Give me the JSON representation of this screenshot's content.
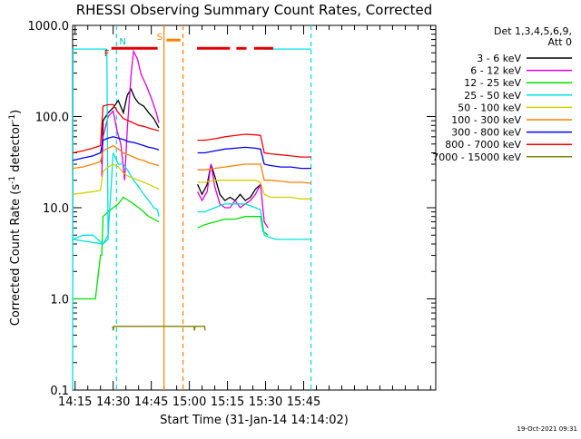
{
  "chart_data": {
    "type": "line",
    "title": "RHESSI Observing Summary Count Rates, Corrected",
    "xlabel": "Start Time (31-Jan-14 14:14:02)",
    "ylabel": "Corrected Count Rate (s⁻¹ detector⁻¹)",
    "ylabel_main": "Corrected Count Rate (s",
    "ylabel_exp1": "-1",
    "ylabel_mid": " detector",
    "ylabel_exp2": "-1",
    "ylabel_end": ")",
    "y_scale": "log",
    "ylim": [
      0.1,
      1000
    ],
    "xlim_minutes": [
      14.03,
      157.0
    ],
    "x_ticks": [
      {
        "label": "14:15",
        "minutes": 15
      },
      {
        "label": "14:30",
        "minutes": 30
      },
      {
        "label": "14:45",
        "minutes": 45
      },
      {
        "label": "15:00",
        "minutes": 60
      },
      {
        "label": "15:15",
        "minutes": 75
      },
      {
        "label": "15:30",
        "minutes": 90
      },
      {
        "label": "15:45",
        "minutes": 105
      }
    ],
    "y_ticks": [
      {
        "label": "1000.0",
        "value": 1000
      },
      {
        "label": "100.0",
        "value": 100
      },
      {
        "label": "10.0",
        "value": 10
      },
      {
        "label": "1.0",
        "value": 1
      },
      {
        "label": "0.1",
        "value": 0.1
      }
    ],
    "legend_header": [
      "Det 1,3,4,5,6,9,",
      "Att 0"
    ],
    "legend_placement": "right",
    "footer_timestamp": "19-Oct-2021 09:31",
    "flag_markers": [
      {
        "label": "N",
        "minutes": 31.3
      },
      {
        "label": "F",
        "minutes": 29.3
      },
      {
        "label": "S",
        "minutes": 50.0
      }
    ],
    "series": [
      {
        "name": "3 - 6 keV",
        "color": "#000000",
        "points": [
          [
            25.5,
            30
          ],
          [
            26,
            90
          ],
          [
            28,
            110
          ],
          [
            30,
            125
          ],
          [
            32,
            150
          ],
          [
            34,
            110
          ],
          [
            35.5,
            170
          ],
          [
            37,
            200
          ],
          [
            38.5,
            160
          ],
          [
            40,
            140
          ],
          [
            42,
            130
          ],
          [
            44,
            110
          ],
          [
            46,
            95
          ],
          [
            48,
            75
          ],
          [
            48.2,
            0
          ],
          [
            63,
            0
          ],
          [
            63.2,
            18
          ],
          [
            65,
            14
          ],
          [
            67,
            18
          ],
          [
            68.5,
            30
          ],
          [
            70,
            22
          ],
          [
            72,
            14
          ],
          [
            74,
            12
          ],
          [
            76,
            13
          ],
          [
            78,
            12
          ],
          [
            80,
            14
          ],
          [
            82,
            12
          ],
          [
            84,
            13
          ],
          [
            86,
            16
          ],
          [
            88,
            18
          ],
          [
            89,
            0
          ]
        ]
      },
      {
        "name": "6 - 12 keV",
        "color": "#e000e0",
        "points": [
          [
            25.5,
            22
          ],
          [
            26,
            60
          ],
          [
            28,
            100
          ],
          [
            30,
            115
          ],
          [
            31.5,
            70
          ],
          [
            33,
            50
          ],
          [
            34.5,
            20
          ],
          [
            35.5,
            70
          ],
          [
            37,
            280
          ],
          [
            38,
            520
          ],
          [
            39.5,
            430
          ],
          [
            41,
            290
          ],
          [
            43,
            220
          ],
          [
            45,
            160
          ],
          [
            47,
            110
          ],
          [
            48,
            85
          ],
          [
            48.2,
            0
          ],
          [
            63,
            0
          ],
          [
            63.2,
            15
          ],
          [
            65,
            12
          ],
          [
            67,
            15
          ],
          [
            68.5,
            30
          ],
          [
            70,
            17
          ],
          [
            72,
            11
          ],
          [
            74,
            10
          ],
          [
            76,
            10
          ],
          [
            78,
            12
          ],
          [
            80,
            10
          ],
          [
            82,
            11
          ],
          [
            84,
            12
          ],
          [
            86,
            14
          ],
          [
            88,
            18
          ],
          [
            89.5,
            7
          ],
          [
            91,
            6
          ],
          [
            91.2,
            0
          ]
        ]
      },
      {
        "name": "12 - 25 keV",
        "color": "#00e000",
        "points": [
          [
            14.03,
            1
          ],
          [
            23,
            1
          ],
          [
            25,
            3
          ],
          [
            25.5,
            3
          ],
          [
            26,
            8
          ],
          [
            28,
            9
          ],
          [
            30,
            10
          ],
          [
            32,
            11
          ],
          [
            34,
            13
          ],
          [
            36,
            12
          ],
          [
            38,
            11
          ],
          [
            40,
            10
          ],
          [
            42,
            9
          ],
          [
            44,
            8
          ],
          [
            46,
            7.5
          ],
          [
            48,
            7
          ],
          [
            48.2,
            0
          ],
          [
            63,
            0
          ],
          [
            63.2,
            6
          ],
          [
            66,
            6.5
          ],
          [
            70,
            7
          ],
          [
            74,
            7.5
          ],
          [
            78,
            7.5
          ],
          [
            82,
            8
          ],
          [
            86,
            8
          ],
          [
            88,
            8
          ],
          [
            89,
            5.5
          ],
          [
            91,
            5
          ],
          [
            91.2,
            0
          ]
        ]
      },
      {
        "name": "25 - 50 keV",
        "color": "#00e0e0",
        "points": [
          [
            14.03,
            0.1
          ],
          [
            14.2,
            550
          ],
          [
            27.5,
            550
          ],
          [
            28,
            4.5
          ],
          [
            26,
            4
          ],
          [
            22,
            5
          ],
          [
            18,
            5
          ],
          [
            14.2,
            4.5
          ],
          [
            26,
            4
          ],
          [
            28,
            5
          ],
          [
            30,
            40
          ],
          [
            32,
            30
          ],
          [
            34,
            30
          ],
          [
            36,
            25
          ],
          [
            38,
            20
          ],
          [
            40,
            17
          ],
          [
            42,
            14
          ],
          [
            44,
            12
          ],
          [
            46,
            10
          ],
          [
            47.5,
            9.5
          ],
          [
            48,
            8
          ],
          [
            48.2,
            0
          ],
          [
            63,
            0
          ],
          [
            63.2,
            9
          ],
          [
            66,
            9
          ],
          [
            70,
            10
          ],
          [
            74,
            11
          ],
          [
            78,
            11
          ],
          [
            82,
            11
          ],
          [
            86,
            10
          ],
          [
            88,
            9.5
          ],
          [
            89.5,
            5
          ],
          [
            91,
            4.8
          ],
          [
            94,
            4.5
          ],
          [
            98,
            4.5
          ],
          [
            102,
            4.5
          ],
          [
            106,
            4.5
          ],
          [
            108,
            4.5
          ],
          [
            108.2,
            0
          ],
          [
            89.5,
            0
          ],
          [
            89.7,
            550
          ],
          [
            108,
            550
          ]
        ]
      },
      {
        "name": "50 - 100 keV",
        "color": "#d0d000",
        "points": [
          [
            14.03,
            14
          ],
          [
            18,
            14.5
          ],
          [
            22,
            15
          ],
          [
            25,
            15.5
          ],
          [
            26,
            25
          ],
          [
            28,
            28
          ],
          [
            30,
            30
          ],
          [
            32,
            28
          ],
          [
            34,
            24
          ],
          [
            36,
            22
          ],
          [
            38,
            21
          ],
          [
            40,
            20
          ],
          [
            42,
            19
          ],
          [
            44,
            18
          ],
          [
            46,
            17
          ],
          [
            48,
            16
          ],
          [
            48.2,
            0
          ],
          [
            63,
            0
          ],
          [
            63.2,
            19
          ],
          [
            66,
            19
          ],
          [
            70,
            20
          ],
          [
            74,
            20
          ],
          [
            78,
            20
          ],
          [
            82,
            20
          ],
          [
            86,
            20
          ],
          [
            88,
            19
          ],
          [
            89.5,
            14
          ],
          [
            92,
            13
          ],
          [
            96,
            13
          ],
          [
            100,
            13
          ],
          [
            104,
            12.5
          ],
          [
            108,
            12.5
          ],
          [
            108.2,
            0
          ]
        ]
      },
      {
        "name": "100 - 300 keV",
        "color": "#ff8000",
        "points": [
          [
            14.03,
            27
          ],
          [
            18,
            28
          ],
          [
            22,
            30
          ],
          [
            25,
            32
          ],
          [
            26,
            42
          ],
          [
            28,
            45
          ],
          [
            30,
            48
          ],
          [
            32,
            44
          ],
          [
            34,
            40
          ],
          [
            36,
            38
          ],
          [
            38,
            36
          ],
          [
            40,
            34
          ],
          [
            42,
            33
          ],
          [
            44,
            31
          ],
          [
            46,
            30
          ],
          [
            48,
            29
          ],
          [
            48.2,
            0
          ],
          [
            63,
            0
          ],
          [
            63.2,
            26
          ],
          [
            66,
            26
          ],
          [
            70,
            27
          ],
          [
            74,
            28
          ],
          [
            78,
            29
          ],
          [
            82,
            30
          ],
          [
            86,
            30
          ],
          [
            88,
            30
          ],
          [
            89.5,
            20
          ],
          [
            92,
            20
          ],
          [
            96,
            19.5
          ],
          [
            100,
            19
          ],
          [
            104,
            19
          ],
          [
            108,
            18.5
          ],
          [
            108.2,
            0
          ]
        ]
      },
      {
        "name": "300 - 800 keV",
        "color": "#0000ff",
        "points": [
          [
            14.03,
            33
          ],
          [
            18,
            35
          ],
          [
            22,
            37
          ],
          [
            25,
            40
          ],
          [
            26,
            55
          ],
          [
            28,
            58
          ],
          [
            30,
            60
          ],
          [
            32,
            58
          ],
          [
            34,
            56
          ],
          [
            36,
            53
          ],
          [
            38,
            52
          ],
          [
            40,
            50
          ],
          [
            42,
            48
          ],
          [
            44,
            46
          ],
          [
            46,
            45
          ],
          [
            48,
            43
          ],
          [
            48.2,
            0
          ],
          [
            63,
            0
          ],
          [
            63.2,
            40
          ],
          [
            66,
            40
          ],
          [
            70,
            42
          ],
          [
            74,
            44
          ],
          [
            78,
            45
          ],
          [
            82,
            46
          ],
          [
            86,
            45
          ],
          [
            88,
            44
          ],
          [
            89.5,
            30
          ],
          [
            92,
            29
          ],
          [
            96,
            28
          ],
          [
            100,
            28
          ],
          [
            104,
            27
          ],
          [
            108,
            27
          ],
          [
            108.2,
            0
          ]
        ]
      },
      {
        "name": "800 - 7000 keV",
        "color": "#ff0000",
        "points": [
          [
            14.03,
            40
          ],
          [
            18,
            42
          ],
          [
            22,
            45
          ],
          [
            25,
            48
          ],
          [
            26,
            130
          ],
          [
            28,
            135
          ],
          [
            30,
            135
          ],
          [
            32,
            110
          ],
          [
            34,
            95
          ],
          [
            36,
            90
          ],
          [
            38,
            85
          ],
          [
            40,
            80
          ],
          [
            42,
            78
          ],
          [
            44,
            75
          ],
          [
            46,
            72
          ],
          [
            48,
            70
          ],
          [
            48.2,
            0
          ],
          [
            63,
            0
          ],
          [
            63.2,
            55
          ],
          [
            66,
            55
          ],
          [
            70,
            57
          ],
          [
            74,
            60
          ],
          [
            78,
            62
          ],
          [
            82,
            64
          ],
          [
            86,
            63
          ],
          [
            88,
            62
          ],
          [
            89.5,
            40
          ],
          [
            92,
            39
          ],
          [
            96,
            38
          ],
          [
            100,
            37
          ],
          [
            104,
            36
          ],
          [
            108,
            36
          ],
          [
            108.2,
            0
          ]
        ]
      },
      {
        "name": "7000 - 15000 keV",
        "color": "#808000",
        "points": [
          [
            29.8,
            0.5
          ],
          [
            30,
            0.45
          ],
          [
            30.3,
            0.5
          ],
          [
            61.8,
            0.5
          ],
          [
            62,
            0.45
          ],
          [
            62.3,
            0.5
          ],
          [
            66,
            0.5
          ],
          [
            66.2,
            0.45
          ]
        ]
      }
    ],
    "segments": [
      {
        "color": "#e00000",
        "y": 560,
        "from": 29.3,
        "to": 47.5
      },
      {
        "color": "#e00000",
        "y": 560,
        "from": 63.0,
        "to": 76.0
      },
      {
        "color": "#e00000",
        "y": 560,
        "from": 78.5,
        "to": 82.5
      },
      {
        "color": "#e00000",
        "y": 560,
        "from": 85.5,
        "to": 93.0
      },
      {
        "color": "#ff8000",
        "y": 690,
        "from": 51.0,
        "to": 56.5
      }
    ],
    "vlines": [
      {
        "color": "#00e0e0",
        "minutes": 31.3,
        "dash": true
      },
      {
        "color": "#00e0e0",
        "minutes": 107.9,
        "dash": true
      },
      {
        "color": "#ff8000",
        "minutes": 50.0,
        "dash": false
      },
      {
        "color": "#ff8000",
        "minutes": 57.5,
        "dash": true
      }
    ]
  }
}
